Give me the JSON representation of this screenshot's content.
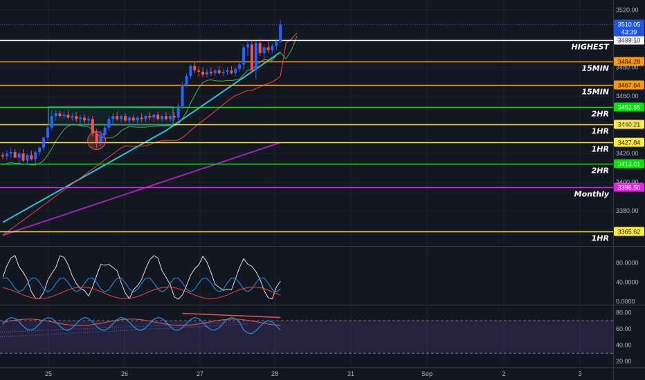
{
  "chart_data": {
    "type": "candlestick",
    "price_axis": {
      "ticks": [
        "3520.00",
        "3500.00",
        "3480.00",
        "3460.00",
        "3440.00",
        "3420.00",
        "3400.00",
        "3380.00"
      ],
      "range": [
        3356,
        3527
      ]
    },
    "time_axis": {
      "ticks": [
        "25",
        "26",
        "27",
        "28",
        "31",
        "Sep",
        "2",
        "3"
      ]
    },
    "last_price": {
      "value": "3510.05",
      "countdown": "43:39",
      "color": "#1e53e5"
    },
    "levels": [
      {
        "price": 3499.1,
        "label": "3499.10",
        "name": "HIGHEST",
        "color": "#ffffff"
      },
      {
        "price": 3484.28,
        "label": "3484.28",
        "name": "15MIN",
        "color": "#ff9800"
      },
      {
        "price": 3467.64,
        "label": "3467.64",
        "name": "15MIN",
        "color": "#ff9800"
      },
      {
        "price": 3452.55,
        "label": "3452.55",
        "name": "2HR",
        "color": "#00e600"
      },
      {
        "price": 3440.21,
        "label": "3440.21",
        "name": "1HR",
        "color": "#ffeb3b"
      },
      {
        "price": 3427.84,
        "label": "3427.84",
        "name": "1HR",
        "color": "#ffeb3b"
      },
      {
        "price": 3413.01,
        "label": "3413.01",
        "name": "2HR",
        "color": "#00e600"
      },
      {
        "price": 3396.5,
        "label": "3396.50",
        "name": "Monthly",
        "color": "#e91ee9"
      },
      {
        "price": 3365.62,
        "label": "3365.62",
        "name": "1HR",
        "color": "#ffeb3b"
      }
    ],
    "candles": [
      [
        3419,
        3421,
        3416,
        3418
      ],
      [
        3418,
        3422,
        3415,
        3420
      ],
      [
        3420,
        3424,
        3417,
        3421
      ],
      [
        3421,
        3423,
        3418,
        3417
      ],
      [
        3417,
        3421,
        3413,
        3420
      ],
      [
        3420,
        3423,
        3414,
        3415
      ],
      [
        3415,
        3420,
        3412,
        3419
      ],
      [
        3419,
        3422,
        3415,
        3416
      ],
      [
        3416,
        3422,
        3413,
        3421
      ],
      [
        3421,
        3425,
        3419,
        3424
      ],
      [
        3424,
        3432,
        3422,
        3431
      ],
      [
        3431,
        3440,
        3429,
        3438
      ],
      [
        3438,
        3450,
        3436,
        3446
      ],
      [
        3446,
        3450,
        3443,
        3448
      ],
      [
        3448,
        3450,
        3445,
        3446
      ],
      [
        3446,
        3449,
        3444,
        3447
      ],
      [
        3447,
        3450,
        3444,
        3445
      ],
      [
        3445,
        3448,
        3443,
        3446
      ],
      [
        3446,
        3449,
        3442,
        3444
      ],
      [
        3444,
        3447,
        3441,
        3445
      ],
      [
        3445,
        3447,
        3441,
        3443
      ],
      [
        3443,
        3446,
        3440,
        3444
      ],
      [
        3444,
        3446,
        3432,
        3434
      ],
      [
        3434,
        3437,
        3424,
        3428
      ],
      [
        3428,
        3436,
        3425,
        3433
      ],
      [
        3433,
        3440,
        3430,
        3438
      ],
      [
        3438,
        3446,
        3436,
        3444
      ],
      [
        3444,
        3448,
        3441,
        3446
      ],
      [
        3446,
        3449,
        3443,
        3444
      ],
      [
        3444,
        3447,
        3442,
        3446
      ],
      [
        3446,
        3448,
        3442,
        3443
      ],
      [
        3443,
        3446,
        3441,
        3445
      ],
      [
        3445,
        3447,
        3442,
        3443
      ],
      [
        3443,
        3446,
        3441,
        3445
      ],
      [
        3445,
        3448,
        3442,
        3444
      ],
      [
        3444,
        3447,
        3442,
        3446
      ],
      [
        3446,
        3449,
        3443,
        3445
      ],
      [
        3445,
        3448,
        3442,
        3447
      ],
      [
        3447,
        3449,
        3443,
        3444
      ],
      [
        3444,
        3447,
        3442,
        3446
      ],
      [
        3446,
        3449,
        3443,
        3444
      ],
      [
        3444,
        3447,
        3442,
        3446
      ],
      [
        3446,
        3449,
        3443,
        3445
      ],
      [
        3445,
        3455,
        3443,
        3453
      ],
      [
        3453,
        3470,
        3451,
        3468
      ],
      [
        3468,
        3476,
        3466,
        3474
      ],
      [
        3474,
        3482,
        3472,
        3481
      ],
      [
        3481,
        3484,
        3476,
        3478
      ],
      [
        3478,
        3481,
        3474,
        3477
      ],
      [
        3477,
        3480,
        3473,
        3475
      ],
      [
        3475,
        3479,
        3473,
        3477
      ],
      [
        3477,
        3480,
        3474,
        3476
      ],
      [
        3476,
        3479,
        3474,
        3478
      ],
      [
        3478,
        3481,
        3475,
        3476
      ],
      [
        3476,
        3479,
        3474,
        3477
      ],
      [
        3477,
        3480,
        3475,
        3478
      ],
      [
        3478,
        3481,
        3475,
        3476
      ],
      [
        3476,
        3480,
        3474,
        3479
      ],
      [
        3479,
        3484,
        3477,
        3482
      ],
      [
        3482,
        3496,
        3478,
        3494
      ],
      [
        3494,
        3500,
        3488,
        3496
      ],
      [
        3496,
        3499,
        3476,
        3478
      ],
      [
        3478,
        3498,
        3472,
        3497
      ],
      [
        3497,
        3500,
        3488,
        3490
      ],
      [
        3490,
        3496,
        3486,
        3494
      ],
      [
        3494,
        3498,
        3490,
        3492
      ],
      [
        3492,
        3497,
        3490,
        3495
      ],
      [
        3495,
        3500,
        3492,
        3498
      ],
      [
        3498,
        3513,
        3497,
        3510
      ]
    ],
    "oscillator_1": {
      "ticks": [
        "80.0000",
        "40.0000",
        "0.0000"
      ],
      "range": [
        -5,
        112
      ]
    },
    "oscillator_2": {
      "ticks": [
        "80.00",
        "60.00",
        "40.00",
        "20.00"
      ],
      "range": [
        14,
        88
      ],
      "band": [
        30,
        70
      ]
    }
  }
}
